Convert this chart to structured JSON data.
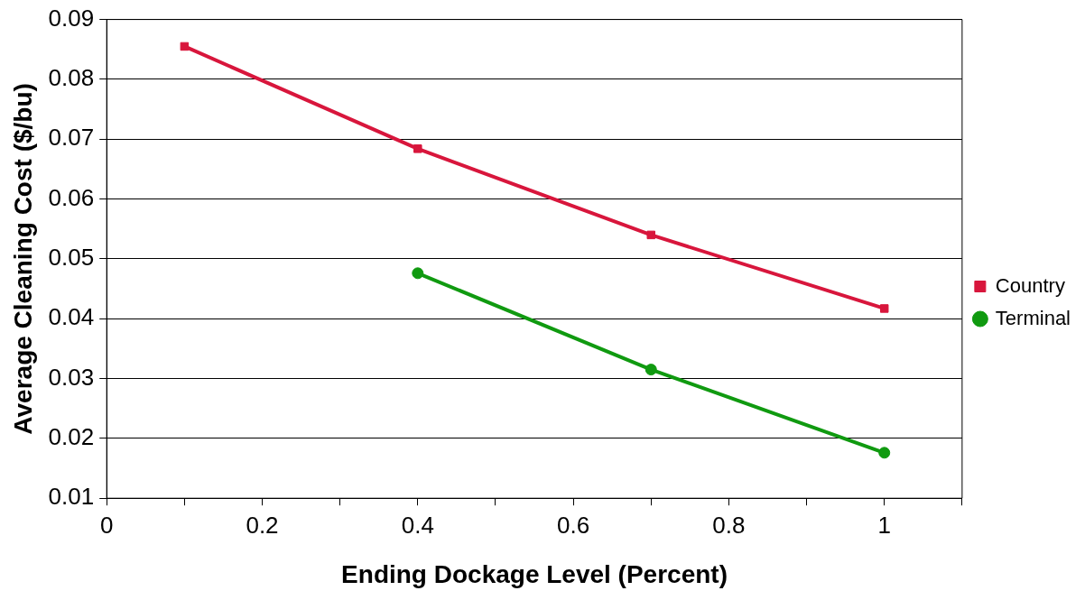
{
  "chart_data": {
    "type": "line",
    "xlabel": "Ending Dockage Level (Percent)",
    "ylabel": "Average Cleaning Cost ($/bu)",
    "xlim": [
      0,
      1.1
    ],
    "xticks": [
      0,
      {
        "value": 0.1,
        "label": null
      },
      0.2,
      {
        "value": 0.3,
        "label": null
      },
      0.4,
      {
        "value": 0.5,
        "label": null
      },
      0.6,
      {
        "value": 0.7,
        "label": null
      },
      0.8,
      {
        "value": 0.9,
        "label": null
      },
      1,
      {
        "value": 1.1,
        "label": null
      }
    ],
    "ylim": [
      0.01,
      0.09
    ],
    "yticks": [
      0.01,
      0.02,
      0.03,
      0.04,
      0.05,
      0.06,
      0.07,
      0.08,
      0.09
    ],
    "grid": "y",
    "legend": "right",
    "series": [
      {
        "name": "Country",
        "color": "#d8163c",
        "marker": "square",
        "x": [
          0.1,
          0.4,
          0.7,
          1
        ],
        "values": [
          0.0855,
          0.0684,
          0.054,
          0.0417
        ]
      },
      {
        "name": "Terminal",
        "color": "#109a10",
        "marker": "circle",
        "x": [
          0.4,
          0.7,
          1
        ],
        "values": [
          0.0476,
          0.0315,
          0.0176
        ]
      }
    ]
  }
}
